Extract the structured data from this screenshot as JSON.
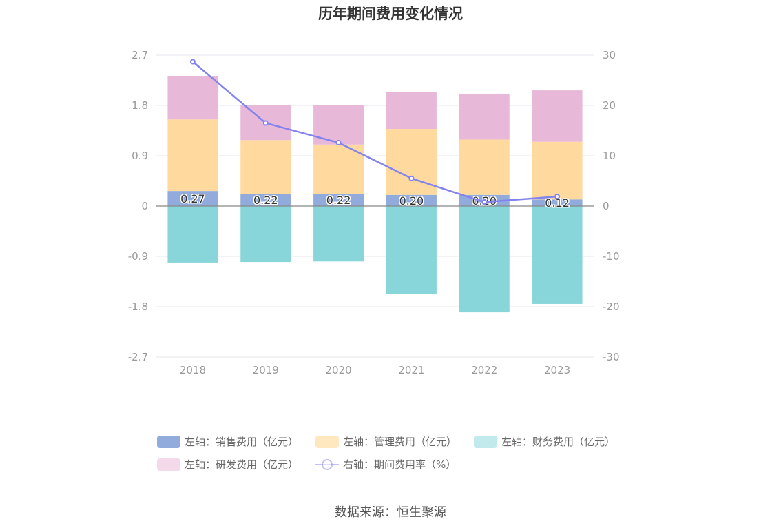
{
  "title": "历年期间费用变化情况",
  "source": "数据来源：恒生聚源",
  "chart_data": {
    "type": "bar",
    "stacked": true,
    "categories": [
      "2018",
      "2019",
      "2020",
      "2021",
      "2022",
      "2023"
    ],
    "left_axis": {
      "ylim": [
        -2.7,
        2.7
      ],
      "ticks": [
        "2.7",
        "1.8",
        "0.9",
        "0",
        "-0.9",
        "-1.8",
        "-2.7"
      ]
    },
    "right_axis": {
      "ylim": [
        -30,
        30
      ],
      "ticks": [
        "30",
        "20",
        "10",
        "0",
        "-10",
        "-20",
        "-30"
      ]
    },
    "series": [
      {
        "name": "左轴：销售费用（亿元）",
        "axis": "left",
        "color": "#91acdc",
        "values": [
          0.27,
          0.22,
          0.22,
          0.2,
          0.2,
          0.12
        ]
      },
      {
        "name": "左轴：管理费用（亿元）",
        "axis": "left",
        "color": "#ffd99d",
        "values": [
          1.28,
          0.96,
          0.88,
          1.18,
          0.99,
          1.03
        ]
      },
      {
        "name": "左轴：财务费用（亿元）",
        "axis": "left",
        "color": "#88d6da",
        "values": [
          -1.01,
          -1.0,
          -0.99,
          -1.57,
          -1.9,
          -1.75
        ]
      },
      {
        "name": "左轴：研发费用（亿元）",
        "axis": "left",
        "color": "#e8b8d9",
        "values": [
          0.78,
          0.62,
          0.7,
          0.66,
          0.82,
          0.92
        ]
      },
      {
        "name": "右轴：期间费用率（%）",
        "axis": "right",
        "type": "line",
        "color": "#8483ee",
        "values": [
          28.7,
          16.5,
          12.6,
          5.5,
          0.8,
          1.9
        ]
      }
    ],
    "data_labels": [
      "0.27",
      "0.22",
      "0.22",
      "0.20",
      "0.20",
      "0.12"
    ],
    "legend_position": "bottom",
    "grid": true
  },
  "legend": [
    {
      "label": "左轴：销售费用（亿元）",
      "color": "#91acdc",
      "kind": "bar"
    },
    {
      "label": "左轴：管理费用（亿元）",
      "color": "#ffe7c0",
      "kind": "bar"
    },
    {
      "label": "左轴：财务费用（亿元）",
      "color": "#c2e9ec",
      "kind": "bar"
    },
    {
      "label": "左轴：研发费用（亿元）",
      "color": "#f3d9ea",
      "kind": "bar"
    },
    {
      "label": "右轴：期间费用率（%）",
      "color": "#8483ee",
      "kind": "line"
    }
  ]
}
